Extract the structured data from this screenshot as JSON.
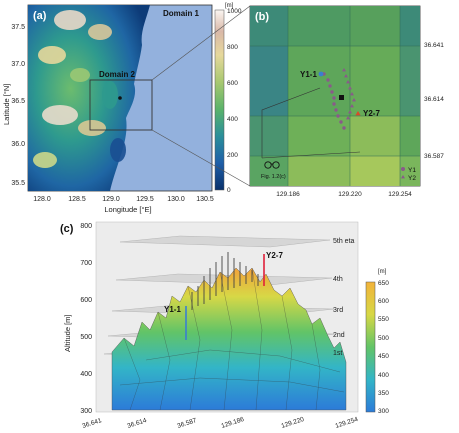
{
  "panel_a": {
    "label": "(a)",
    "domain1": "Domain 1",
    "domain2": "Domain 2",
    "ylabel": "Latitude [°N]",
    "xlabel": "Longitude [°E]",
    "lat_ticks": [
      "37.5",
      "37.0",
      "36.5",
      "36.0",
      "35.5"
    ],
    "lon_ticks": [
      "128.0",
      "128.5",
      "129.0",
      "129.5",
      "130.0",
      "130.5"
    ],
    "colorbar_unit": "[m]",
    "colorbar_ticks": [
      "1000",
      "800",
      "600",
      "400",
      "200",
      "0"
    ],
    "colors": {
      "sea": "#93b1dd"
    }
  },
  "panel_b": {
    "label": "(b)",
    "y1_1": "Y1-1",
    "y2_7": "Y2-7",
    "fig_ref": "Fig. 1.2(c)",
    "lat_ticks": [
      "36.641",
      "36.614",
      "36.587"
    ],
    "lon_ticks": [
      "129.186",
      "129.220",
      "129.254"
    ],
    "legend": [
      "Y1",
      "Y2"
    ],
    "colors": {
      "y1_marker": "#8a5a8a",
      "y2_marker": "#8a5a8a",
      "y1_1": "#3a7fd0",
      "y2_7": "#d84a2a"
    }
  },
  "panel_c": {
    "label": "(c)",
    "ylabel": "Altitude [m]",
    "alt_ticks": [
      "800",
      "700",
      "600",
      "500",
      "400",
      "300"
    ],
    "eta_labels": [
      "5th eta",
      "4th",
      "3rd",
      "2nd",
      "1st"
    ],
    "y1_1": "Y1-1",
    "y2_7": "Y2-7",
    "bottom_ticks": [
      "36.641",
      "36.614",
      "36.587",
      "129.186",
      "129.220",
      "129.254"
    ],
    "colorbar_unit": "[m]",
    "colorbar_ticks": [
      "650",
      "600",
      "550",
      "500",
      "450",
      "400",
      "350",
      "300"
    ]
  }
}
